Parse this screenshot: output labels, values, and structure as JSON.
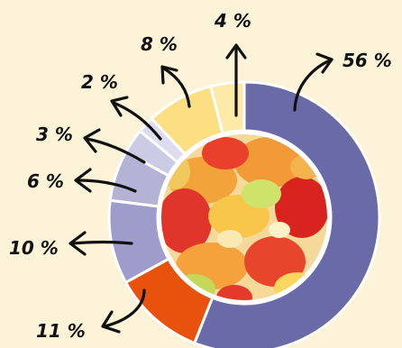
{
  "chart_data": {
    "type": "pie",
    "title": "",
    "style": "donut",
    "center_image": "gummy-candies-photo",
    "slices": [
      {
        "label": "56 %",
        "value": 56,
        "color": "#6b6aa8"
      },
      {
        "label": "11 %",
        "value": 11,
        "color": "#e8520c"
      },
      {
        "label": "10 %",
        "value": 10,
        "color": "#9e9cca"
      },
      {
        "label": "6 %",
        "value": 6,
        "color": "#b4b3d6"
      },
      {
        "label": "3 %",
        "value": 3,
        "color": "#cccbe5"
      },
      {
        "label": "2 %",
        "value": 2,
        "color": "#dedcf0"
      },
      {
        "label": "8 %",
        "value": 8,
        "color": "#fddf83"
      },
      {
        "label": "4 %",
        "value": 4,
        "color": "#feeaa8"
      }
    ]
  }
}
